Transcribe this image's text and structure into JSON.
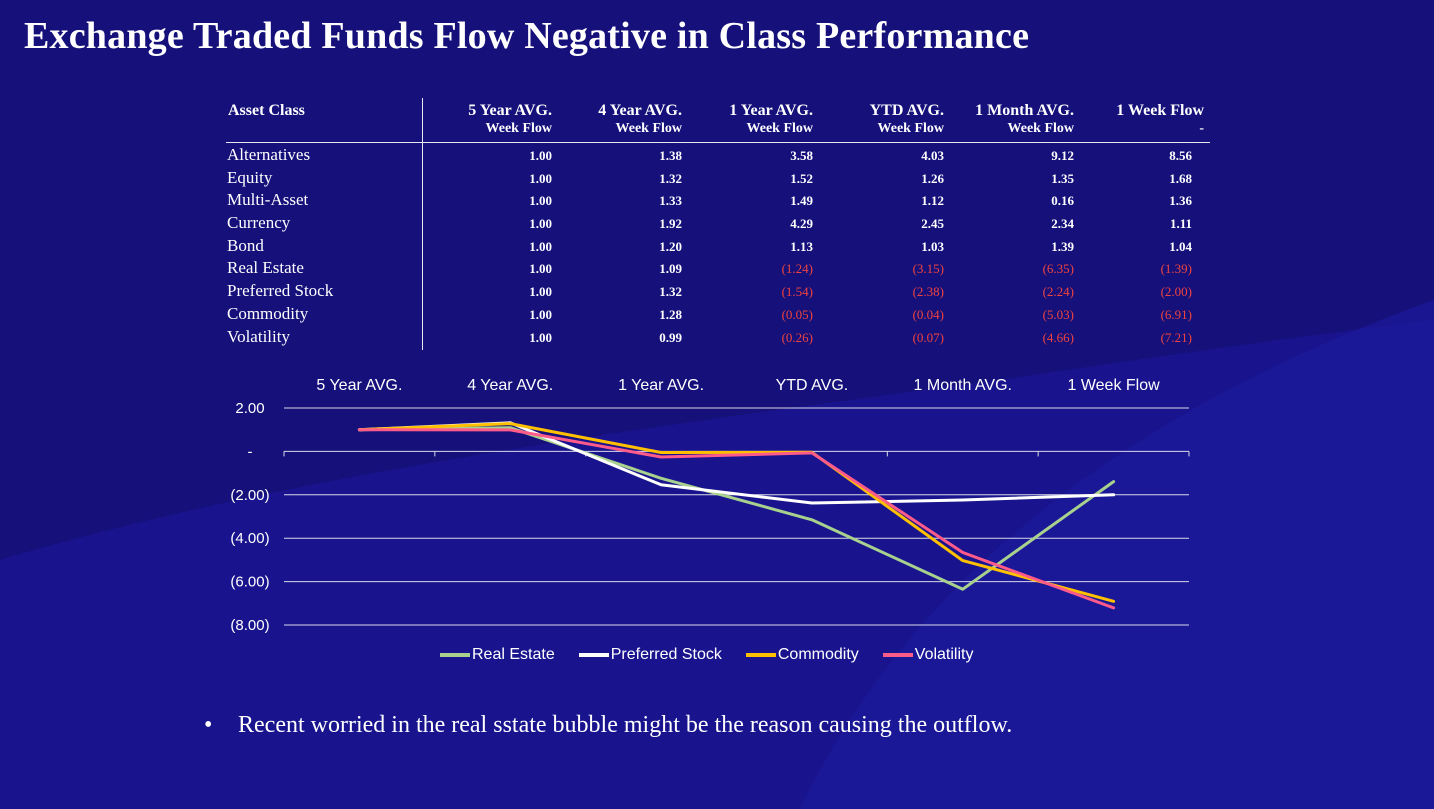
{
  "slide": {
    "title": "Exchange Traded Funds Flow Negative in Class Performance",
    "bullet": "Recent worried in the real sstate bubble might be the reason causing the outflow.",
    "bullet_mark": "•"
  },
  "table": {
    "asset_header": "Asset Class",
    "headers": [
      {
        "line1": "5 Year AVG.",
        "line2": "Week Flow"
      },
      {
        "line1": "4 Year AVG.",
        "line2": "Week Flow"
      },
      {
        "line1": "1 Year AVG.",
        "line2": "Week Flow"
      },
      {
        "line1": "YTD AVG.",
        "line2": "Week Flow"
      },
      {
        "line1": "1 Month AVG.",
        "line2": "Week Flow"
      },
      {
        "line1": "1 Week Flow",
        "line2": "-"
      }
    ],
    "rows": [
      {
        "name": "Alternatives",
        "values": [
          "1.00",
          "1.38",
          "3.58",
          "4.03",
          "9.12",
          "8.56"
        ]
      },
      {
        "name": "Equity",
        "values": [
          "1.00",
          "1.32",
          "1.52",
          "1.26",
          "1.35",
          "1.68"
        ]
      },
      {
        "name": "Multi-Asset",
        "values": [
          "1.00",
          "1.33",
          "1.49",
          "1.12",
          "0.16",
          "1.36"
        ]
      },
      {
        "name": "Currency",
        "values": [
          "1.00",
          "1.92",
          "4.29",
          "2.45",
          "2.34",
          "1.11"
        ]
      },
      {
        "name": "Bond",
        "values": [
          "1.00",
          "1.20",
          "1.13",
          "1.03",
          "1.39",
          "1.04"
        ]
      },
      {
        "name": "Real Estate",
        "values": [
          "1.00",
          "1.09",
          "(1.24)",
          "(3.15)",
          "(6.35)",
          "(1.39)"
        ]
      },
      {
        "name": "Preferred Stock",
        "values": [
          "1.00",
          "1.32",
          "(1.54)",
          "(2.38)",
          "(2.24)",
          "(2.00)"
        ]
      },
      {
        "name": "Commodity",
        "values": [
          "1.00",
          "1.28",
          "(0.05)",
          "(0.04)",
          "(5.03)",
          "(6.91)"
        ]
      },
      {
        "name": "Volatility",
        "values": [
          "1.00",
          "0.99",
          "(0.26)",
          "(0.07)",
          "(4.66)",
          "(7.21)"
        ]
      }
    ]
  },
  "chart_data": {
    "type": "line",
    "categories": [
      "5 Year AVG.",
      "4 Year AVG.",
      "1 Year AVG.",
      "YTD AVG.",
      "1 Month AVG.",
      "1 Week Flow"
    ],
    "ylim": [
      -8,
      2
    ],
    "yticks": [
      2,
      0,
      -2,
      -4,
      -6,
      -8
    ],
    "ytick_labels": [
      "2.00",
      "-",
      "(2.00)",
      "(4.00)",
      "(6.00)",
      "(8.00)"
    ],
    "legend_position": "bottom",
    "series": [
      {
        "name": "Real Estate",
        "color": "#a9d18e",
        "values": [
          1.0,
          1.09,
          -1.24,
          -3.15,
          -6.35,
          -1.39
        ]
      },
      {
        "name": "Preferred Stock",
        "color": "#ffffff",
        "values": [
          1.0,
          1.32,
          -1.54,
          -2.38,
          -2.24,
          -2.0
        ]
      },
      {
        "name": "Commodity",
        "color": "#ffc000",
        "values": [
          1.0,
          1.28,
          -0.05,
          -0.04,
          -5.03,
          -6.91
        ]
      },
      {
        "name": "Volatility",
        "color": "#ff5b8a",
        "values": [
          1.0,
          0.99,
          -0.26,
          -0.07,
          -4.66,
          -7.21
        ]
      }
    ]
  }
}
